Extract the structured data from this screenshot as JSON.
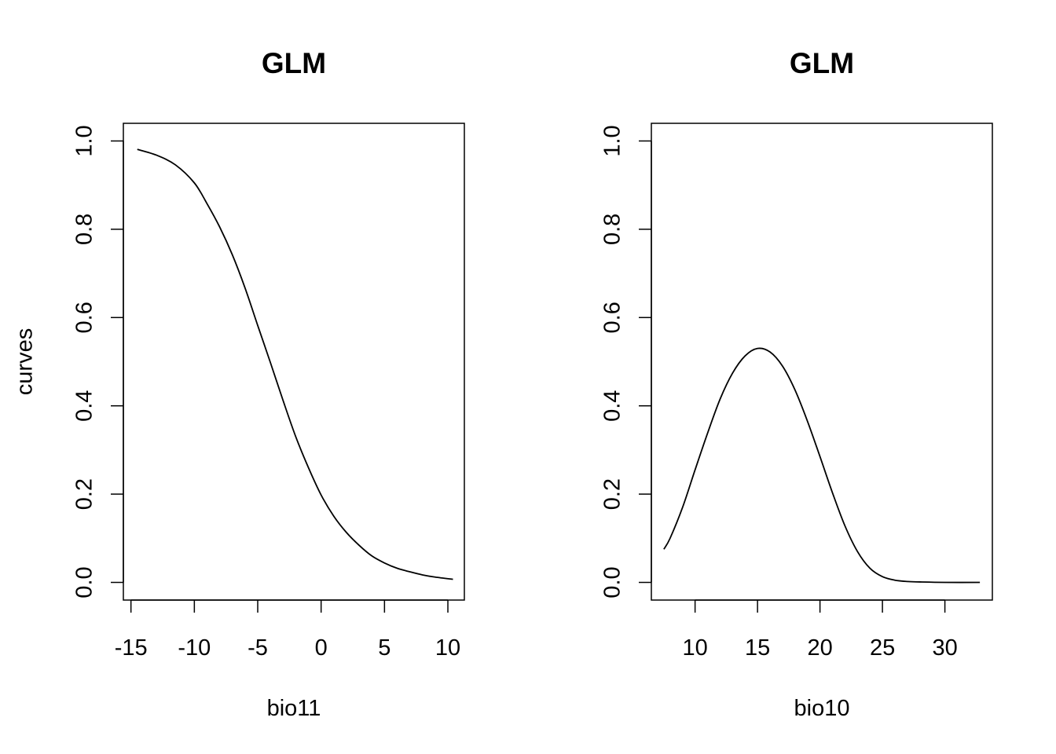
{
  "chart_data": [
    {
      "type": "line",
      "title": "GLM",
      "xlabel": "bio11",
      "ylabel": "curves",
      "xlim": [
        -15.6,
        11.3
      ],
      "ylim": [
        -0.04,
        1.04
      ],
      "xticks": [
        -15,
        -10,
        -5,
        0,
        5,
        10
      ],
      "xtick_labels": [
        "-15",
        "-10",
        "-5",
        "0",
        "5",
        "10"
      ],
      "yticks": [
        0,
        0.2,
        0.4,
        0.6,
        0.8,
        1.0
      ],
      "ytick_labels": [
        "0.0",
        "0.2",
        "0.4",
        "0.6",
        "0.8",
        "1.0"
      ],
      "grid": false,
      "series": [
        {
          "color": "#000000",
          "x": [
            -14.5,
            -13,
            -11.5,
            -10,
            -9,
            -8,
            -7,
            -6,
            -5,
            -4,
            -3,
            -2,
            -1,
            0,
            1,
            2,
            3,
            4,
            5,
            6,
            7,
            8,
            9,
            10.4
          ],
          "y": [
            0.981,
            0.968,
            0.946,
            0.905,
            0.858,
            0.805,
            0.742,
            0.667,
            0.582,
            0.498,
            0.412,
            0.33,
            0.26,
            0.198,
            0.15,
            0.113,
            0.084,
            0.06,
            0.044,
            0.032,
            0.024,
            0.017,
            0.012,
            0.007
          ]
        }
      ]
    },
    {
      "type": "line",
      "title": "GLM",
      "xlabel": "bio10",
      "ylabel": "",
      "xlim": [
        6.5,
        33.8
      ],
      "ylim": [
        -0.04,
        1.04
      ],
      "xticks": [
        10,
        15,
        20,
        25,
        30
      ],
      "xtick_labels": [
        "10",
        "15",
        "20",
        "25",
        "30"
      ],
      "yticks": [
        0,
        0.2,
        0.4,
        0.6,
        0.8,
        1.0
      ],
      "ytick_labels": [
        "0.0",
        "0.2",
        "0.4",
        "0.6",
        "0.8",
        "1.0"
      ],
      "grid": false,
      "series": [
        {
          "color": "#000000",
          "x": [
            7.5,
            8,
            9,
            10,
            11,
            12,
            13,
            14,
            15,
            16,
            17,
            18,
            19,
            20,
            21,
            22,
            23,
            24,
            25,
            26,
            27,
            28,
            30,
            32.8
          ],
          "y": [
            0.075,
            0.1,
            0.17,
            0.255,
            0.338,
            0.415,
            0.474,
            0.513,
            0.53,
            0.522,
            0.49,
            0.436,
            0.365,
            0.285,
            0.203,
            0.128,
            0.07,
            0.032,
            0.013,
            0.005,
            0.002,
            0.001,
            0.0,
            0.0
          ]
        }
      ]
    }
  ]
}
